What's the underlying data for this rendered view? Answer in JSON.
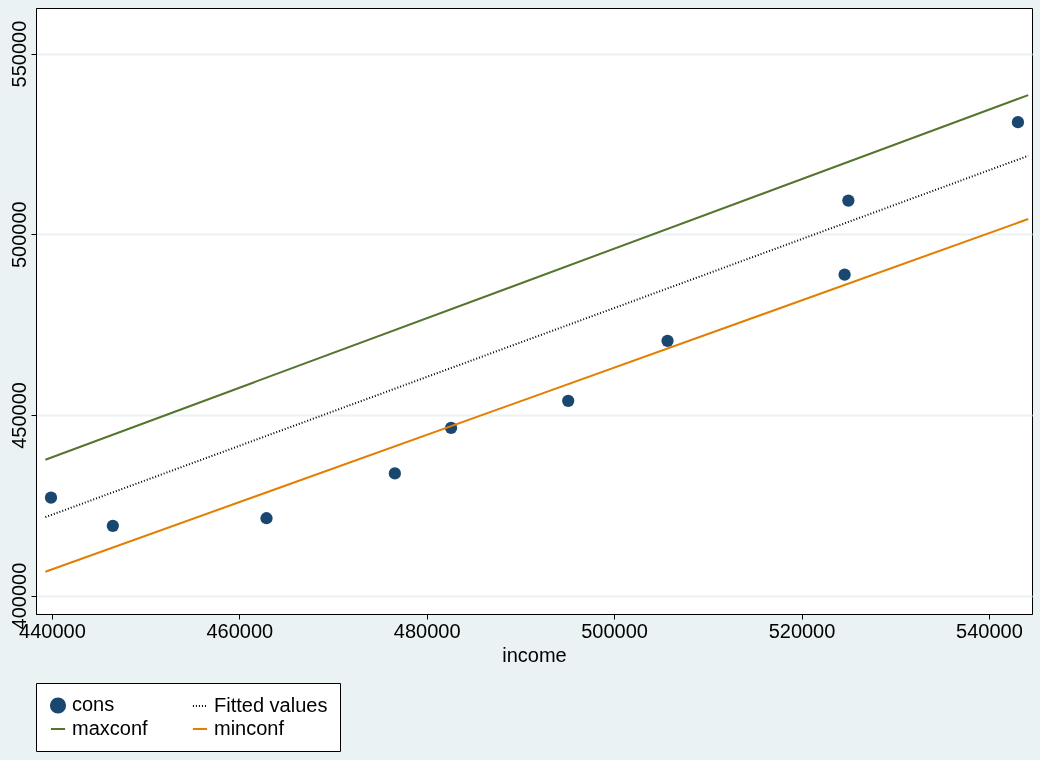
{
  "chart_data": {
    "type": "scatter",
    "xlabel": "income",
    "xlim": [
      438300,
      544600
    ],
    "ylim": [
      394900,
      562600
    ],
    "xticks": [
      440000,
      460000,
      480000,
      500000,
      520000,
      540000
    ],
    "yticks": [
      400000,
      450000,
      500000,
      550000
    ],
    "grid": "y",
    "legend": "bottom",
    "series": [
      {
        "name": "cons",
        "color": "#1a476f",
        "marker": "circle",
        "x": [
          439900,
          446500,
          462900,
          476600,
          482600,
          495100,
          505700,
          524600,
          525000,
          543100
        ],
        "values": [
          427100,
          419300,
          421400,
          433800,
          446400,
          453900,
          470500,
          488800,
          509300,
          531000
        ]
      },
      {
        "name": "Fitted values",
        "type": "line",
        "color": "#000000",
        "line_style": "dotted",
        "marker": "none",
        "x": [
          439300,
          544200
        ],
        "values": [
          421700,
          521700
        ]
      },
      {
        "name": "maxconf",
        "type": "line",
        "color": "#55752f",
        "line_style": "solid",
        "marker": "none",
        "x": [
          439300,
          544200
        ],
        "values": [
          437600,
          538500
        ]
      },
      {
        "name": "minconf",
        "type": "line",
        "color": "#e37e00",
        "line_style": "solid",
        "marker": "none",
        "x": [
          439300,
          544200
        ],
        "values": [
          406600,
          504200
        ]
      }
    ]
  }
}
